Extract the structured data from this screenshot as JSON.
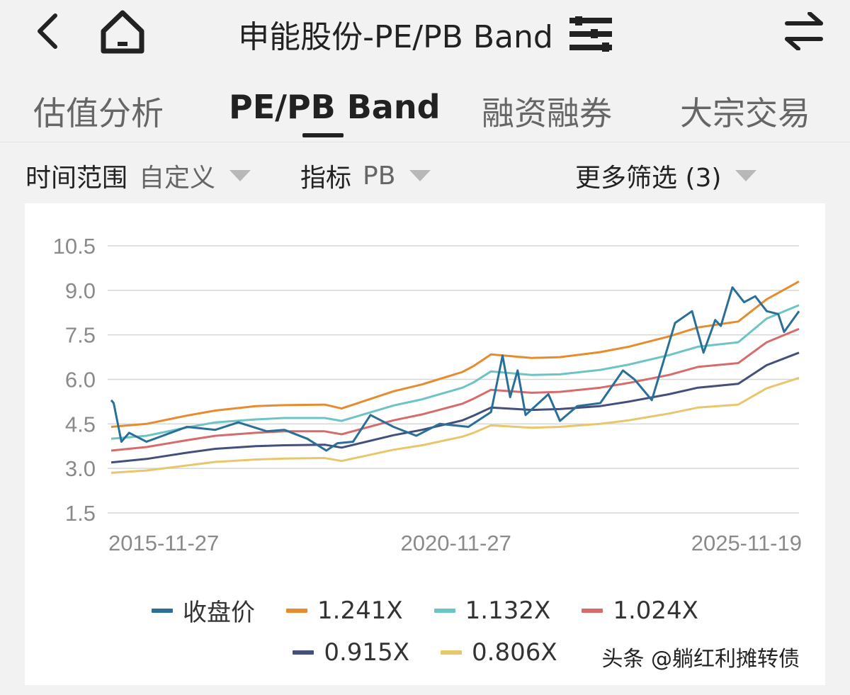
{
  "header": {
    "title": "申能股份-PE/PB Band",
    "back_icon": "chevron-left-icon",
    "home_icon": "home-icon",
    "filter_icon": "sliders-icon",
    "switch_icon": "swap-arrows-icon"
  },
  "tabs": [
    {
      "label": "估值分析",
      "active": false
    },
    {
      "label": "PE/PB Band",
      "active": true
    },
    {
      "label": "融资融券",
      "active": false
    },
    {
      "label": "大宗交易",
      "active": false
    }
  ],
  "filters": {
    "time_range": {
      "label": "时间范围",
      "value": "自定义"
    },
    "indicator": {
      "label": "指标",
      "value": "PB"
    },
    "more": {
      "label": "更多筛选 (3)"
    }
  },
  "chart_data": {
    "type": "line",
    "title": "",
    "xlabel": "",
    "ylabel": "",
    "ylim": [
      1.5,
      10.5
    ],
    "yticks": [
      "10.5",
      "9.0",
      "7.5",
      "6.0",
      "4.5",
      "3.0",
      "1.5"
    ],
    "xticks": [
      "2015-11-27",
      "2020-11-27",
      "2025-11-19"
    ],
    "x_range": [
      "2015-11-27",
      "2025-11-19"
    ],
    "grid": true,
    "legend_position": "bottom",
    "colors": {
      "close": "#2a6f97",
      "b1241": "#e68c2e",
      "b1132": "#6cc4c4",
      "b1024": "#d76b6b",
      "b0915": "#444f7c",
      "b0806": "#e8c76a"
    },
    "band_dates": [
      "2015-11-27",
      "2016-06-01",
      "2017-01-01",
      "2017-06-01",
      "2018-01-01",
      "2018-06-01",
      "2019-01-01",
      "2019-04-01",
      "2020-01-01",
      "2020-06-01",
      "2021-01-01",
      "2021-03-01",
      "2021-06-01",
      "2022-01-01",
      "2022-06-01",
      "2023-01-01",
      "2023-06-01",
      "2024-01-01",
      "2024-06-01",
      "2025-01-01",
      "2025-06-01",
      "2025-11-19"
    ],
    "series": [
      {
        "key": "close",
        "name": "收盘价",
        "x": [
          "2015-11-27",
          "2015-12-10",
          "2016-01-20",
          "2016-03-01",
          "2016-06-01",
          "2017-01-01",
          "2017-06-01",
          "2017-10-01",
          "2018-03-01",
          "2018-06-01",
          "2018-10-01",
          "2019-01-10",
          "2019-03-10",
          "2019-06-01",
          "2019-09-01",
          "2020-01-01",
          "2020-05-01",
          "2020-09-01",
          "2021-02-01",
          "2021-06-01",
          "2021-08-01",
          "2021-09-10",
          "2021-10-20",
          "2021-12-01",
          "2022-04-01",
          "2022-06-01",
          "2022-09-01",
          "2023-01-01",
          "2023-05-01",
          "2023-07-01",
          "2023-10-01",
          "2024-02-01",
          "2024-05-01",
          "2024-07-01",
          "2024-09-01",
          "2024-10-01",
          "2024-12-01",
          "2025-02-01",
          "2025-04-01",
          "2025-06-01",
          "2025-08-01",
          "2025-09-01",
          "2025-11-19"
        ],
        "values": [
          5.3,
          5.2,
          3.9,
          4.2,
          3.9,
          4.4,
          4.3,
          4.55,
          4.25,
          4.3,
          4.0,
          3.6,
          3.85,
          3.9,
          4.8,
          4.4,
          4.1,
          4.5,
          4.4,
          4.9,
          6.8,
          5.4,
          6.3,
          4.8,
          5.5,
          4.6,
          5.1,
          5.2,
          6.3,
          6.0,
          5.3,
          7.9,
          8.3,
          6.9,
          8.0,
          7.8,
          9.1,
          8.6,
          8.8,
          8.3,
          8.2,
          7.6,
          8.3
        ]
      },
      {
        "key": "b1241",
        "name": "1.241X",
        "values": [
          4.4,
          4.5,
          4.78,
          4.95,
          5.1,
          5.13,
          5.15,
          5.02,
          5.6,
          5.83,
          6.25,
          6.45,
          6.84,
          6.72,
          6.75,
          6.92,
          7.1,
          7.45,
          7.75,
          7.95,
          8.7,
          9.3
        ]
      },
      {
        "key": "b1132",
        "name": "1.132X",
        "values": [
          4.0,
          4.1,
          4.38,
          4.55,
          4.65,
          4.7,
          4.7,
          4.6,
          5.12,
          5.33,
          5.72,
          5.9,
          6.27,
          6.15,
          6.17,
          6.32,
          6.5,
          6.82,
          7.1,
          7.25,
          8.05,
          8.5
        ]
      },
      {
        "key": "b1024",
        "name": "1.024X",
        "values": [
          3.6,
          3.72,
          3.95,
          4.1,
          4.2,
          4.25,
          4.25,
          4.15,
          4.62,
          4.82,
          5.18,
          5.35,
          5.65,
          5.55,
          5.58,
          5.72,
          5.88,
          6.15,
          6.42,
          6.55,
          7.25,
          7.7
        ]
      },
      {
        "key": "b0915",
        "name": "0.915X",
        "values": [
          3.2,
          3.32,
          3.53,
          3.66,
          3.75,
          3.78,
          3.8,
          3.7,
          4.12,
          4.3,
          4.62,
          4.78,
          5.05,
          4.97,
          5.0,
          5.1,
          5.25,
          5.5,
          5.72,
          5.85,
          6.48,
          6.9
        ]
      },
      {
        "key": "b0806",
        "name": "0.806X",
        "values": [
          2.85,
          2.93,
          3.1,
          3.22,
          3.3,
          3.33,
          3.35,
          3.25,
          3.63,
          3.78,
          4.07,
          4.2,
          4.45,
          4.37,
          4.4,
          4.5,
          4.62,
          4.85,
          5.05,
          5.15,
          5.7,
          6.05
        ]
      }
    ]
  },
  "watermark": "头条 @躺红利摊转债"
}
